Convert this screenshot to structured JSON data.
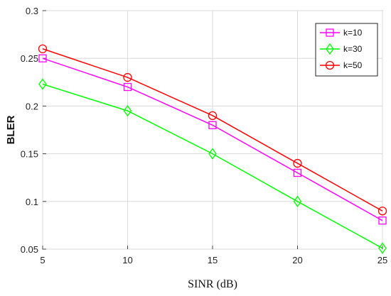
{
  "chart_data": {
    "type": "line",
    "title": "",
    "xlabel": "SINR (dB)",
    "ylabel": "BLER",
    "x": [
      5,
      10,
      15,
      20,
      25
    ],
    "xlim": [
      5,
      25
    ],
    "ylim": [
      0.05,
      0.3
    ],
    "xticks": [
      "5",
      "10",
      "15",
      "20",
      "25"
    ],
    "yticks": [
      "0.05",
      "0.1",
      "0.15",
      "0.2",
      "0.25",
      "0.3"
    ],
    "grid": true,
    "legend_position": "top-right",
    "series": [
      {
        "name": "k=10",
        "color": "#ff00ff",
        "marker": "square",
        "values": [
          0.25,
          0.22,
          0.18,
          0.13,
          0.08
        ]
      },
      {
        "name": "k=30",
        "color": "#00ff00",
        "marker": "diamond",
        "values": [
          0.223,
          0.195,
          0.15,
          0.1,
          0.051
        ]
      },
      {
        "name": "k=50",
        "color": "#ff0000",
        "marker": "circle",
        "values": [
          0.26,
          0.23,
          0.19,
          0.14,
          0.09
        ]
      }
    ]
  }
}
